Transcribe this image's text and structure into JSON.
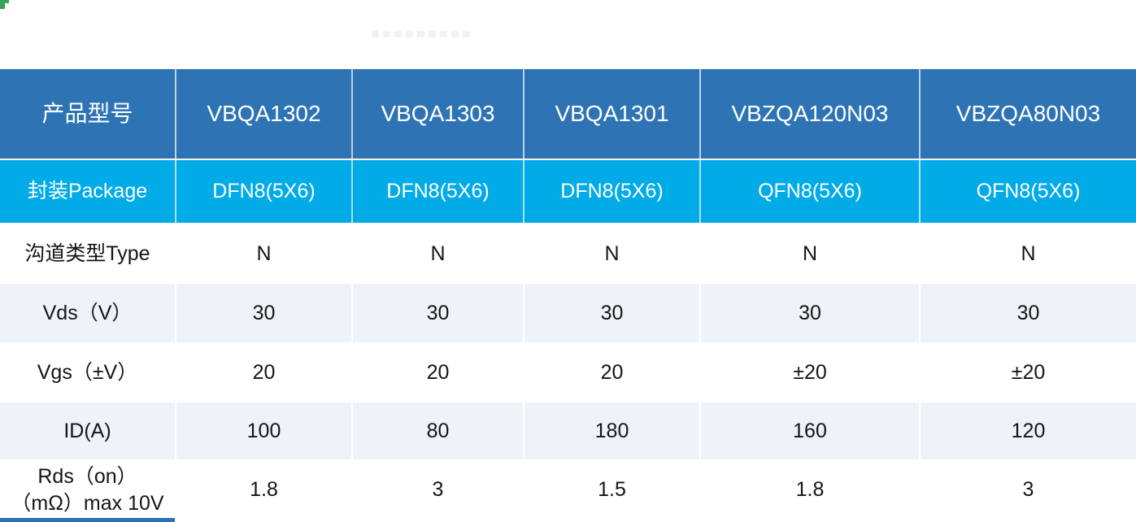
{
  "colors": {
    "header_bg": "#2e74b5",
    "package_bg": "#00abe8",
    "alt_row_bg": "#eef2f9",
    "header_text": "#ffffff",
    "body_text": "#151515",
    "corner_flag": "#35a254"
  },
  "table": {
    "header": {
      "label": "产品型号",
      "products": [
        "VBQA1302",
        "VBQA1303",
        "VBQA1301",
        "VBZQA120N03",
        "VBZQA80N03"
      ]
    },
    "rows": [
      {
        "label": "封装Package",
        "values": [
          "DFN8(5X6)",
          "DFN8(5X6)",
          "DFN8(5X6)",
          "QFN8(5X6)",
          "QFN8(5X6)"
        ]
      },
      {
        "label": "沟道类型Type",
        "values": [
          "N",
          "N",
          "N",
          "N",
          "N"
        ]
      },
      {
        "label": "Vds（V）",
        "values": [
          "30",
          "30",
          "30",
          "30",
          "30"
        ]
      },
      {
        "label": "Vgs（±V）",
        "values": [
          "20",
          "20",
          "20",
          "±20",
          "±20"
        ]
      },
      {
        "label": "ID(A)",
        "values": [
          "100",
          "80",
          "180",
          "160",
          "120"
        ]
      },
      {
        "label": "Rds（on） （mΩ）max 10V",
        "values": [
          "1.8",
          "3",
          "1.5",
          "1.8",
          "3"
        ]
      }
    ]
  }
}
